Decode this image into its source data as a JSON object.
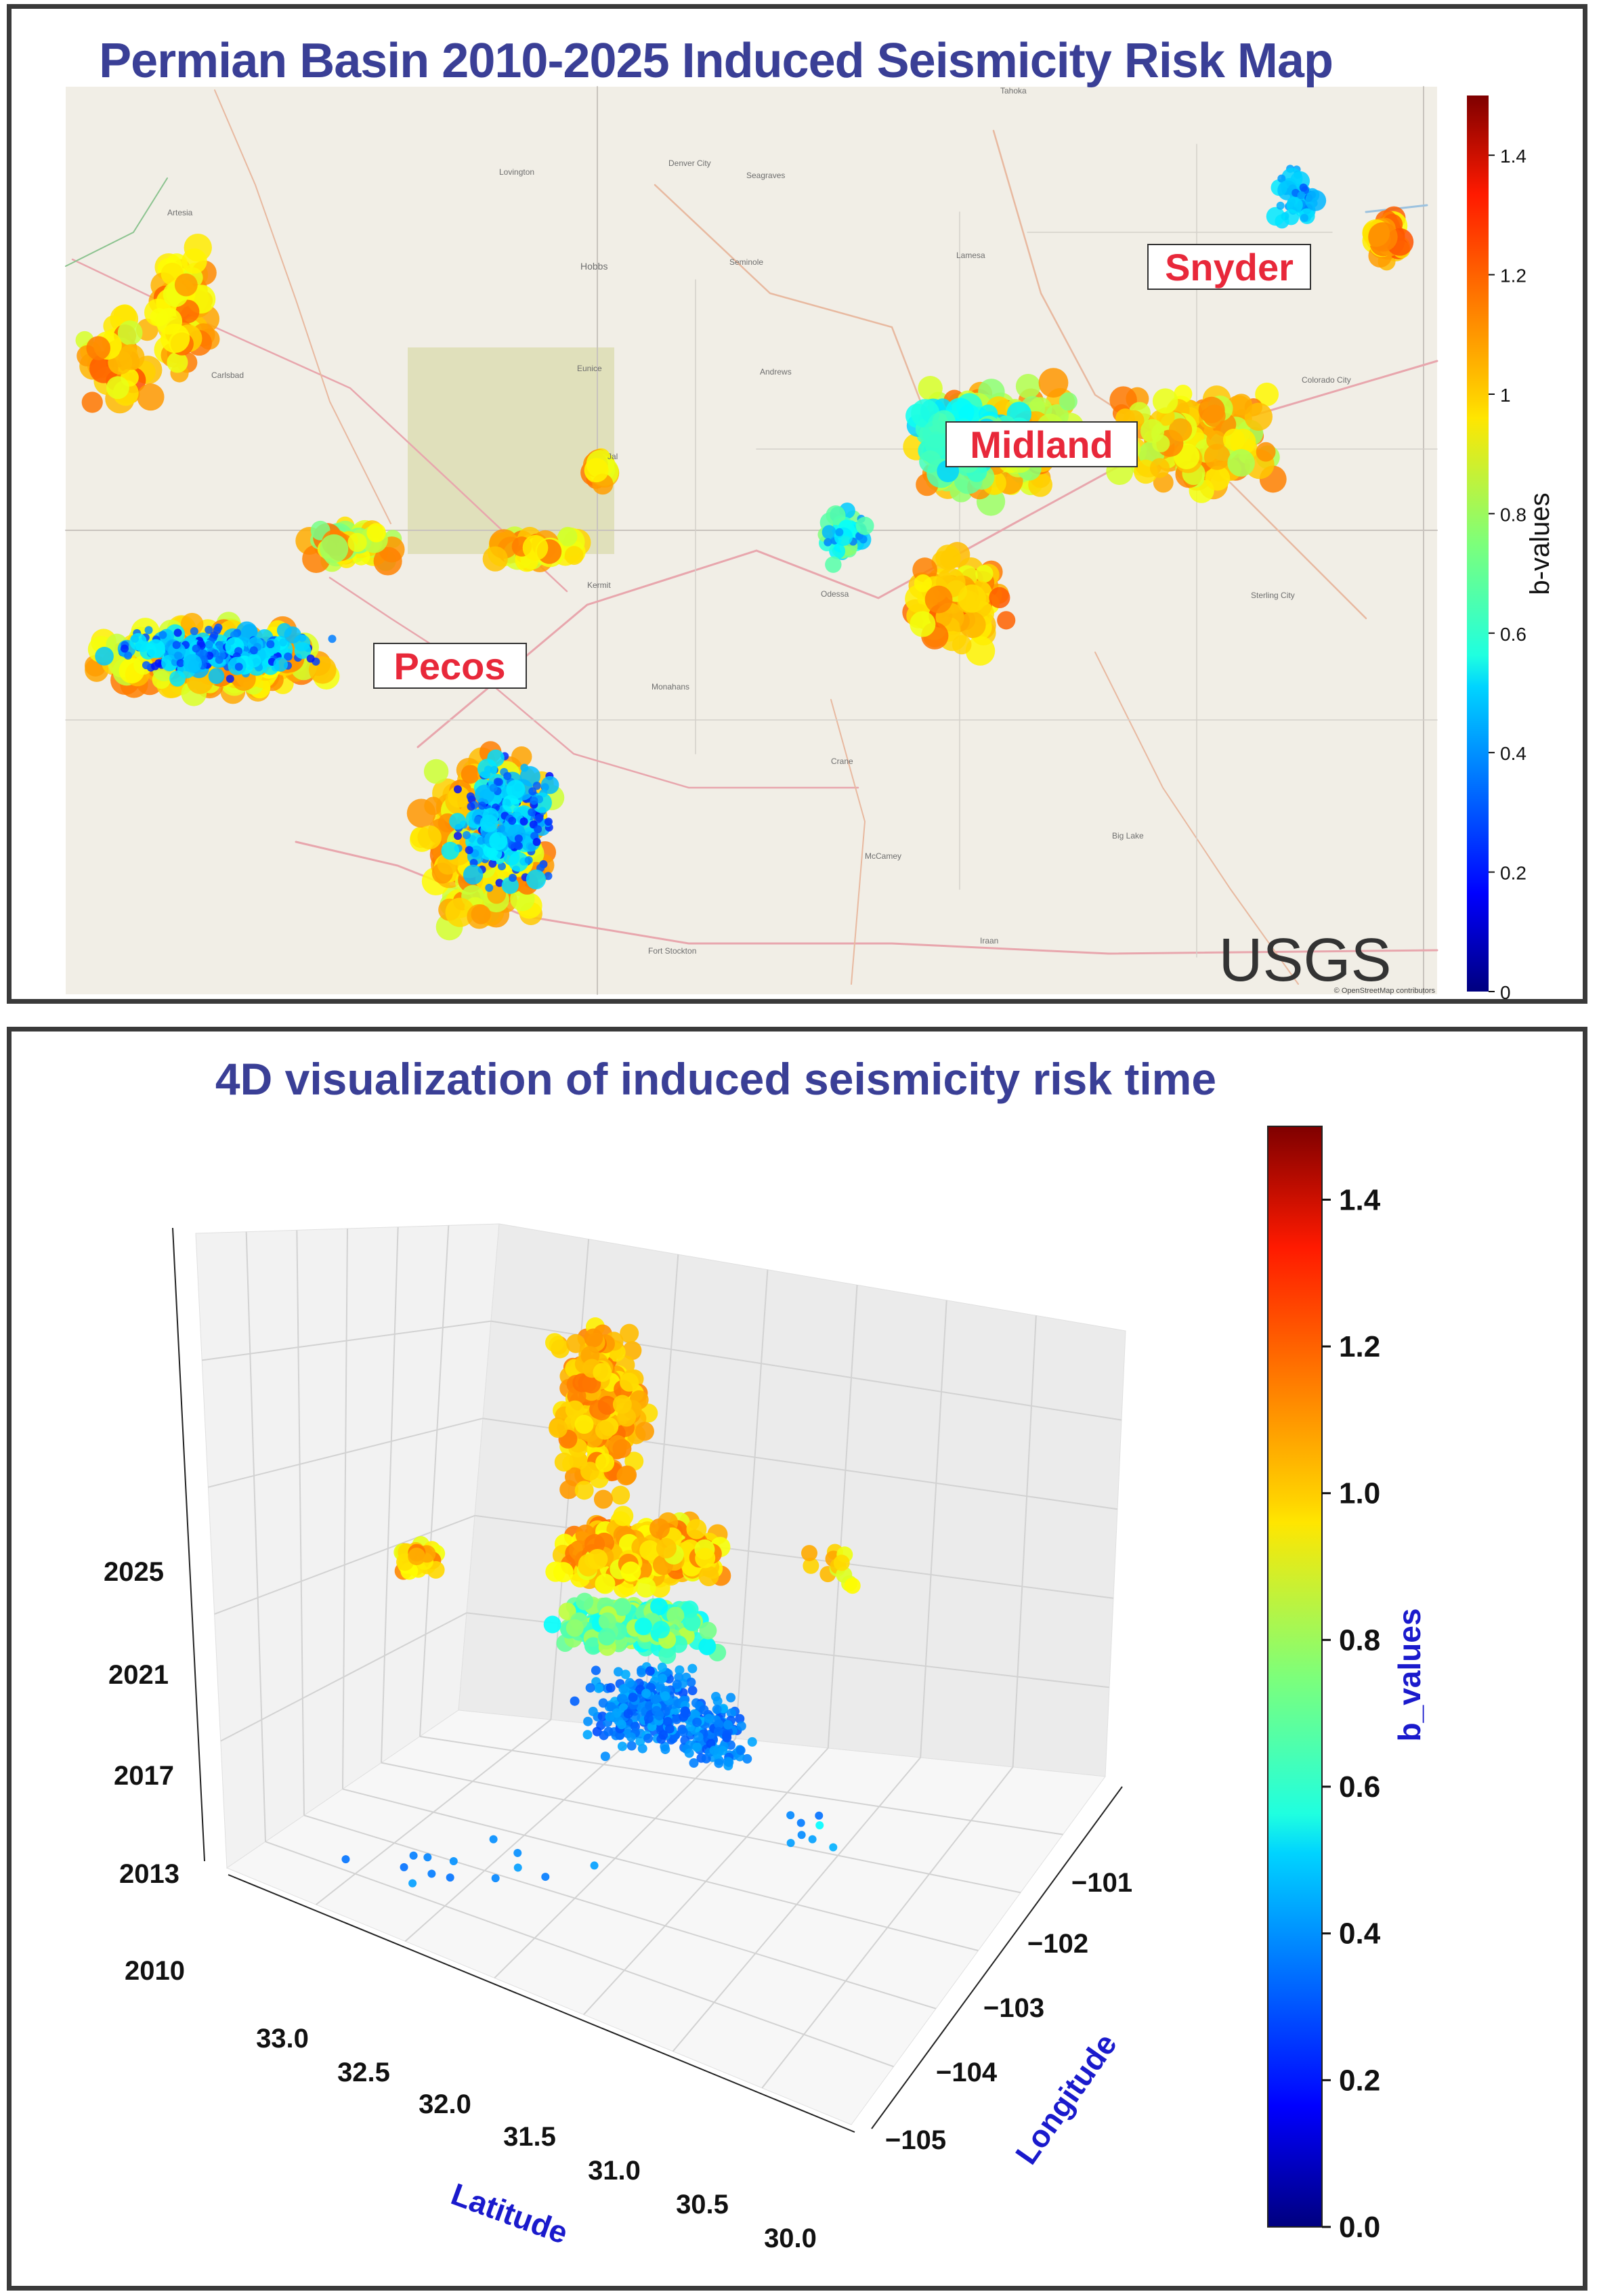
{
  "map_panel": {
    "title": "Permian Basin 2010-2025 Induced Seismicity Risk Map",
    "cities": [
      "Lovington",
      "Denver City",
      "Seagraves",
      "Hobbs",
      "Seminole",
      "Lamesa",
      "Tahoka",
      "Artesia",
      "Carlsbad",
      "Eunice",
      "Andrews",
      "Jal",
      "Kermit",
      "Monahans",
      "Crane",
      "McCamey",
      "Big Lake",
      "Iraan",
      "Fort Stockton",
      "Sterling City",
      "Colorado City",
      "Odessa"
    ],
    "labels": [
      "Pecos",
      "Midland",
      "Snyder"
    ],
    "watermark": "USGS",
    "credit": "© OpenStreetMap contributors",
    "colorbar_label": "b-values",
    "colorbar_ticks": [
      "0",
      "0.2",
      "0.4",
      "0.6",
      "0.8",
      "1",
      "1.2",
      "1.4"
    ]
  },
  "viz_panel": {
    "title": "4D visualization of induced seismicity risk time",
    "colorbar_label": "b_values",
    "colorbar_ticks": [
      "0.0",
      "0.2",
      "0.4",
      "0.6",
      "0.8",
      "1.0",
      "1.2",
      "1.4"
    ]
  },
  "chart_data": [
    {
      "type": "scatter",
      "title": "Permian Basin 2010-2025 Induced Seismicity Risk Map",
      "color_label": "b-values",
      "color_range": [
        0,
        1.5
      ],
      "colormap": "jet",
      "clusters": [
        {
          "name": "Pecos",
          "b_value_range": [
            0.2,
            1.2
          ]
        },
        {
          "name": "Midland",
          "b_value_range": [
            0.6,
            1.2
          ]
        },
        {
          "name": "Snyder",
          "b_value_range": [
            0.3,
            1.2
          ]
        }
      ]
    },
    {
      "type": "scatter",
      "title": "4D visualization of induced seismicity risk time",
      "xlabel": "Latitude",
      "ylabel": "Longitude",
      "zlabel": "",
      "latitude_ticks": [
        "33.0",
        "32.5",
        "32.0",
        "31.5",
        "31.0",
        "30.5",
        "30.0"
      ],
      "longitude_ticks": [
        "−101",
        "−102",
        "−103",
        "−104",
        "−105"
      ],
      "time_ticks": [
        "2010",
        "2013",
        "2017",
        "2021",
        "2025"
      ],
      "color_label": "b_values",
      "color_range": [
        0,
        1.5
      ],
      "colormap": "jet"
    }
  ]
}
